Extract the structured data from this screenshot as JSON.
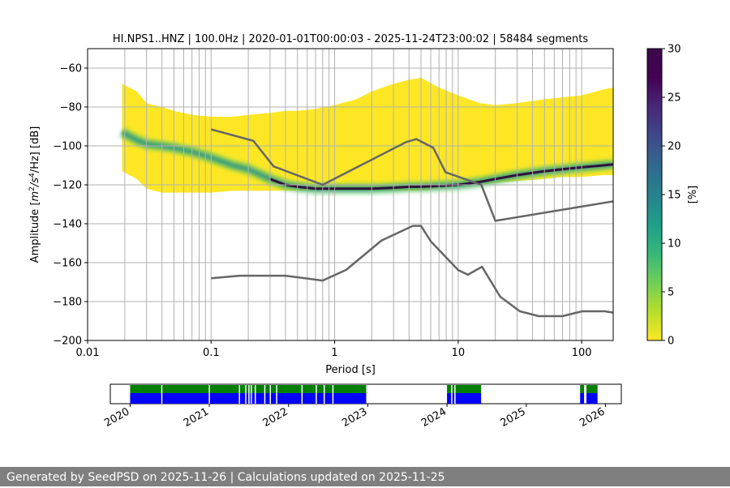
{
  "chart_data": {
    "type": "heatmap",
    "title": "HI.NPS1..HNZ | 100.0Hz | 2020-01-01T00:00:03 - 2025-11-24T23:00:02 | 58484 segments",
    "xlabel": "Period [s]",
    "ylabel_parts": {
      "a": "Amplitude [",
      "m": "m",
      "e2": "2",
      "s": "/s",
      "e4": "4",
      "hz": "/Hz] [dB]"
    },
    "xscale": "log",
    "xlim": [
      0.01,
      180
    ],
    "ylim": [
      -200,
      -50
    ],
    "xticks": [
      {
        "value": 0.01,
        "label": "0.01"
      },
      {
        "value": 0.1,
        "label": "0.1"
      },
      {
        "value": 1,
        "label": "1"
      },
      {
        "value": 10,
        "label": "10"
      },
      {
        "value": 100,
        "label": "100"
      }
    ],
    "yticks": [
      {
        "value": -60,
        "label": "−60"
      },
      {
        "value": -80,
        "label": "−80"
      },
      {
        "value": -100,
        "label": "−100"
      },
      {
        "value": -120,
        "label": "−120"
      },
      {
        "value": -140,
        "label": "−140"
      },
      {
        "value": -160,
        "label": "−160"
      },
      {
        "value": -180,
        "label": "−180"
      },
      {
        "value": -200,
        "label": "−200"
      }
    ],
    "vertical_gridlines": [
      0.02,
      0.03,
      0.04,
      0.05,
      0.06,
      0.07,
      0.08,
      0.09,
      0.1,
      0.2,
      0.3,
      0.4,
      0.5,
      0.6,
      0.7,
      0.8,
      0.9,
      1,
      2,
      3,
      4,
      5,
      6,
      7,
      8,
      9,
      10,
      20,
      30,
      40,
      50,
      60,
      70,
      80,
      90,
      100
    ],
    "horizontal_gridlines": [
      -60,
      -80,
      -100,
      -120,
      -140,
      -160,
      -180
    ],
    "colorbar": {
      "label": "[%]",
      "range": [
        0,
        30
      ],
      "ticks": [
        {
          "value": 0,
          "label": "0"
        },
        {
          "value": 5,
          "label": "5"
        },
        {
          "value": 10,
          "label": "10"
        },
        {
          "value": 15,
          "label": "15"
        },
        {
          "value": 20,
          "label": "20"
        },
        {
          "value": 25,
          "label": "25"
        },
        {
          "value": 30,
          "label": "30"
        }
      ]
    },
    "psd_distribution": {
      "period": [
        0.019,
        0.025,
        0.03,
        0.04,
        0.05,
        0.07,
        0.1,
        0.15,
        0.2,
        0.3,
        0.4,
        0.5,
        0.7,
        1,
        1.5,
        2,
        3,
        4,
        5,
        7,
        10,
        15,
        20,
        30,
        50,
        70,
        100,
        150,
        180
      ],
      "mode_db": [
        -93,
        -97,
        -99,
        -100,
        -101,
        -103,
        -106,
        -110,
        -112,
        -117,
        -120,
        -121,
        -122,
        -122,
        -122,
        -122,
        -121.5,
        -121,
        -121,
        -120.5,
        -120,
        -118.5,
        -117,
        -115,
        -113,
        -112,
        -111,
        -110,
        -109.5
      ],
      "lower_db": [
        -113,
        -117,
        -122,
        -124,
        -124,
        -124,
        -124,
        -123,
        -123,
        -123,
        -123,
        -123,
        -123,
        -123,
        -123,
        -123,
        -123,
        -123,
        -123,
        -122,
        -121,
        -120,
        -119,
        -118,
        -117,
        -116,
        -116,
        -115,
        -115
      ],
      "upper_db": [
        -68,
        -72,
        -78,
        -80,
        -82,
        -84,
        -85,
        -85,
        -84,
        -83,
        -82,
        -82,
        -81,
        -79,
        -76,
        -72,
        -68,
        -66,
        -65,
        -70,
        -74,
        -78,
        -79,
        -78,
        -76,
        -75,
        -74,
        -71,
        -70
      ]
    },
    "series": [
      {
        "name": "high noise model",
        "period": [
          0.1,
          0.22,
          0.32,
          0.8,
          3.8,
          4.6,
          6.3,
          7.9,
          15.4,
          20,
          180
        ],
        "db": [
          -91.5,
          -97.4,
          -110.5,
          -120,
          -98,
          -96.5,
          -101,
          -113.5,
          -120,
          -138.5,
          -128.5
        ]
      },
      {
        "name": "low noise model",
        "period": [
          0.1,
          0.17,
          0.4,
          0.8,
          1.24,
          2.4,
          4.3,
          5,
          6,
          10,
          12,
          15.6,
          21.9,
          31.6,
          45,
          70,
          101,
          154,
          180
        ],
        "db": [
          -168,
          -166.7,
          -166.7,
          -169.2,
          -163.7,
          -148.6,
          -141.1,
          -141.1,
          -149,
          -163.8,
          -166.2,
          -162.1,
          -177.5,
          -185,
          -187.5,
          -187.5,
          -185,
          -185,
          -185.7
        ]
      }
    ],
    "timeline": {
      "range": [
        2019.75,
        2026.2
      ],
      "ticks": [
        {
          "value": 2020,
          "label": "2020"
        },
        {
          "value": 2021,
          "label": "2021"
        },
        {
          "value": 2022,
          "label": "2022"
        },
        {
          "value": 2023,
          "label": "2023"
        },
        {
          "value": 2024,
          "label": "2024"
        },
        {
          "value": 2025,
          "label": "2025"
        },
        {
          "value": 2026,
          "label": "2026"
        }
      ],
      "data_periods": [
        [
          2020.0,
          2022.98
        ],
        [
          2024.0,
          2024.43
        ],
        [
          2025.68,
          2025.73
        ],
        [
          2025.76,
          2025.9
        ]
      ],
      "gaps": [
        2020.4,
        2021.0,
        2021.38,
        2021.46,
        2021.5,
        2021.53,
        2021.58,
        2021.7,
        2021.77,
        2021.85,
        2022.17,
        2022.35,
        2022.45,
        2022.56,
        2024.06,
        2024.1
      ],
      "data_color": "#0000ff",
      "secondary_color": "#008000"
    },
    "colors": {
      "model_line": "#666666",
      "grid": "#b0b0b0"
    }
  },
  "footer": "Generated by SeedPSD on 2025-11-26 | Calculations updated on 2025-11-25"
}
